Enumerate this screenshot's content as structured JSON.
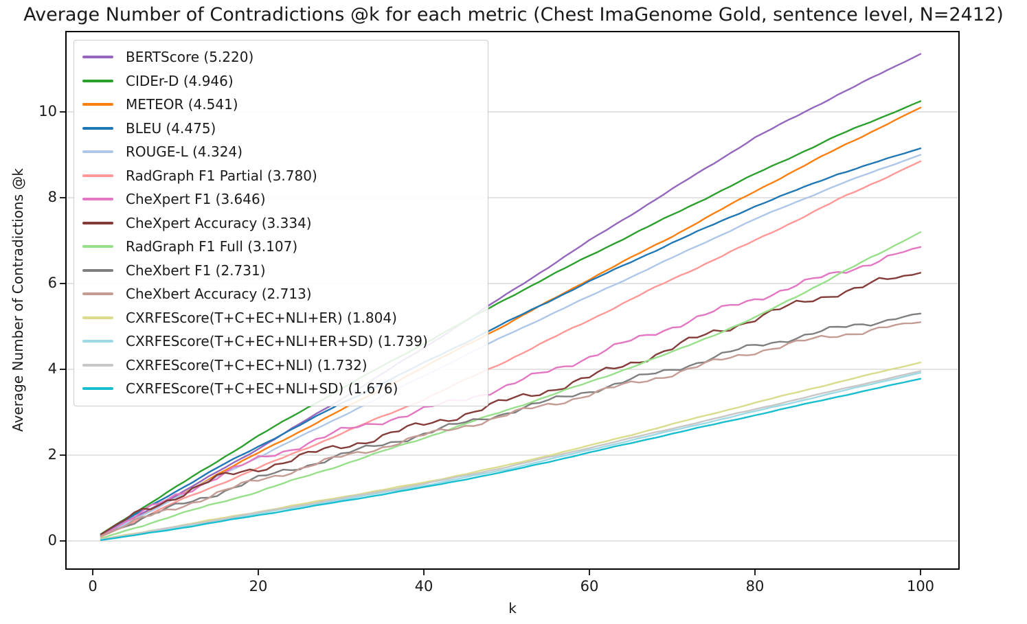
{
  "chart_data": {
    "type": "line",
    "title": "Average Number of Contradictions @k for each metric (Chest ImaGenome Gold, sentence level, N=2412)",
    "xlabel": "k",
    "ylabel": "Average Number of Contradictions @k",
    "x_ticks": [
      0,
      20,
      40,
      60,
      80,
      100
    ],
    "y_ticks": [
      0,
      2,
      4,
      6,
      8,
      10
    ],
    "xlim": [
      -3.3,
      104.7
    ],
    "ylim": [
      -0.67,
      11.89
    ],
    "grid": "horizontal-y-only",
    "grid_color": "#d2d2d2",
    "legend_position": "upper-left",
    "k_points": [
      1,
      5,
      10,
      15,
      20,
      30,
      40,
      50,
      60,
      70,
      80,
      90,
      100
    ],
    "series": [
      {
        "name": "BERTScore",
        "avg": 5.22,
        "label": "BERTScore (5.220)",
        "color": "#9467bd",
        "wiggle": 0.015,
        "values": [
          0.12,
          0.55,
          1.05,
          1.6,
          2.15,
          3.3,
          4.5,
          5.75,
          7.0,
          8.2,
          9.4,
          10.4,
          11.35
        ]
      },
      {
        "name": "CIDEr-D",
        "avg": 4.946,
        "label": "CIDEr-D (4.946)",
        "color": "#2ca02c",
        "wiggle": 0.015,
        "values": [
          0.16,
          0.65,
          1.25,
          1.85,
          2.45,
          3.55,
          4.6,
          5.65,
          6.65,
          7.6,
          8.55,
          9.45,
          10.25
        ]
      },
      {
        "name": "METEOR",
        "avg": 4.541,
        "label": "METEOR (4.541)",
        "color": "#ff7f0e",
        "wiggle": 0.015,
        "values": [
          0.1,
          0.5,
          1.0,
          1.55,
          2.05,
          3.05,
          4.05,
          5.05,
          6.1,
          7.1,
          8.15,
          9.15,
          10.1
        ]
      },
      {
        "name": "BLEU",
        "avg": 4.475,
        "label": "BLEU (4.475)",
        "color": "#1f77b4",
        "wiggle": 0.015,
        "values": [
          0.13,
          0.6,
          1.15,
          1.7,
          2.2,
          3.2,
          4.15,
          5.1,
          6.05,
          6.95,
          7.8,
          8.55,
          9.15
        ]
      },
      {
        "name": "ROUGE-L",
        "avg": 4.324,
        "label": "ROUGE-L (4.324)",
        "color": "#aec7e8",
        "wiggle": 0.012,
        "values": [
          0.1,
          0.5,
          1.0,
          1.5,
          1.95,
          2.9,
          3.85,
          4.8,
          5.7,
          6.6,
          7.5,
          8.3,
          9.0
        ]
      },
      {
        "name": "RadGraph F1 Partial",
        "avg": 3.78,
        "label": "RadGraph F1 Partial (3.780)",
        "color": "#ff9896",
        "wiggle": 0.02,
        "values": [
          0.1,
          0.45,
          0.9,
          1.3,
          1.7,
          2.5,
          3.3,
          4.2,
          5.15,
          6.1,
          7.0,
          7.95,
          8.85
        ]
      },
      {
        "name": "CheXpert F1",
        "avg": 3.646,
        "label": "CheXpert F1 (3.646)",
        "color": "#e377c2",
        "wiggle": 0.09,
        "values": [
          0.14,
          0.55,
          1.05,
          1.5,
          1.9,
          2.55,
          3.05,
          3.6,
          4.3,
          5.0,
          5.65,
          6.25,
          6.85
        ]
      },
      {
        "name": "CheXpert Accuracy",
        "avg": 3.334,
        "label": "CheXpert Accuracy (3.334)",
        "color": "#843c39",
        "wiggle": 0.11,
        "values": [
          0.15,
          0.6,
          1.05,
          1.45,
          1.7,
          2.2,
          2.7,
          3.25,
          3.8,
          4.5,
          5.2,
          5.8,
          6.25
        ]
      },
      {
        "name": "RadGraph F1 Full",
        "avg": 3.107,
        "label": "RadGraph F1 Full (3.107)",
        "color": "#98df8a",
        "wiggle": 0.02,
        "values": [
          0.06,
          0.3,
          0.6,
          0.88,
          1.15,
          1.77,
          2.4,
          3.05,
          3.7,
          4.4,
          5.2,
          6.2,
          7.2
        ]
      },
      {
        "name": "CheXbert F1",
        "avg": 2.731,
        "label": "CheXbert F1 (2.731)",
        "color": "#7f7f7f",
        "wiggle": 0.08,
        "values": [
          0.12,
          0.45,
          0.8,
          1.12,
          1.45,
          2.0,
          2.5,
          3.0,
          3.5,
          4.0,
          4.55,
          4.95,
          5.3
        ]
      },
      {
        "name": "CheXbert Accuracy",
        "avg": 2.713,
        "label": "CheXbert Accuracy (2.713)",
        "color": "#c49c94",
        "wiggle": 0.08,
        "values": [
          0.12,
          0.44,
          0.78,
          1.1,
          1.42,
          1.95,
          2.45,
          2.93,
          3.42,
          3.9,
          4.42,
          4.8,
          5.1
        ]
      },
      {
        "name": "CXRFEScore(T+C+EC+NLI+ER)",
        "avg": 1.804,
        "label": "CXRFEScore(T+C+EC+NLI+ER) (1.804)",
        "color": "#dbdb8d",
        "wiggle": 0.01,
        "values": [
          0.04,
          0.17,
          0.34,
          0.51,
          0.68,
          1.02,
          1.36,
          1.76,
          2.22,
          2.72,
          3.22,
          3.7,
          4.16
        ]
      },
      {
        "name": "CXRFEScore(T+C+EC+NLI+ER+SD)",
        "avg": 1.739,
        "label": "CXRFEScore(T+C+EC+NLI+ER+SD) (1.739)",
        "color": "#9edae5",
        "wiggle": 0.008,
        "values": [
          0.03,
          0.15,
          0.31,
          0.47,
          0.64,
          0.96,
          1.29,
          1.67,
          2.12,
          2.57,
          3.02,
          3.47,
          3.92
        ]
      },
      {
        "name": "CXRFEScore(T+C+EC+NLI)",
        "avg": 1.732,
        "label": "CXRFEScore(T+C+EC+NLI) (1.732)",
        "color": "#c7c7c7",
        "wiggle": 0.008,
        "values": [
          0.04,
          0.16,
          0.33,
          0.49,
          0.66,
          0.99,
          1.33,
          1.72,
          2.17,
          2.62,
          3.07,
          3.52,
          3.96
        ]
      },
      {
        "name": "CXRFEScore(T+C+EC+NLI+SD)",
        "avg": 1.676,
        "label": "CXRFEScore(T+C+EC+NLI+SD) (1.676)",
        "color": "#17becf",
        "wiggle": 0.008,
        "values": [
          0.02,
          0.13,
          0.28,
          0.44,
          0.6,
          0.92,
          1.25,
          1.62,
          2.06,
          2.5,
          2.93,
          3.36,
          3.78
        ]
      }
    ]
  }
}
